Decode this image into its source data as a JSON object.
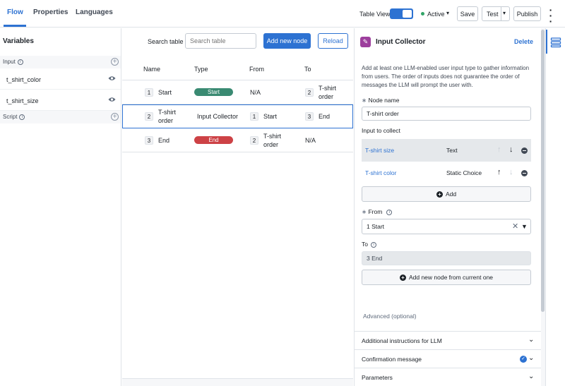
{
  "tabs": [
    {
      "label": "Flow",
      "active": true
    },
    {
      "label": "Properties",
      "active": false
    },
    {
      "label": "Languages",
      "active": false
    }
  ],
  "toolbar": {
    "table_view_label": "Table View",
    "status": "Active",
    "save": "Save",
    "test": "Test",
    "publish": "Publish"
  },
  "variables": {
    "title": "Variables",
    "input_section": "Input",
    "items": [
      {
        "name": "t_shirt_color"
      },
      {
        "name": "t_shirt_size"
      }
    ],
    "script_section": "Script"
  },
  "table": {
    "search_label": "Search table",
    "search_placeholder": "Search table",
    "add_button": "Add new node",
    "reload_button": "Reload",
    "headers": [
      "Name",
      "Type",
      "From",
      "To"
    ],
    "rows": [
      {
        "idx": "1",
        "name": "Start",
        "type": "Start",
        "type_style": "pill",
        "from_idx": "",
        "from": "N/A",
        "to_idx": "2",
        "to": "T-shirt order",
        "selected": false
      },
      {
        "idx": "2",
        "name": "T-shirt order",
        "type": "Input Collector",
        "type_style": "text",
        "from_idx": "1",
        "from": "Start",
        "to_idx": "3",
        "to": "End",
        "selected": true
      },
      {
        "idx": "3",
        "name": "End",
        "type": "End",
        "type_style": "pill",
        "from_idx": "2",
        "from": "T-shirt order",
        "to_idx": "",
        "to": "N/A",
        "selected": false
      }
    ]
  },
  "panel": {
    "title": "Input Collector",
    "delete": "Delete",
    "description": "Add at least one LLM-enabled user input type to gather information from users. The order of inputs does not guarantee the order of messages the LLM will prompt the user with.",
    "node_name_label": "Node name",
    "node_name_value": "T-shirt order",
    "input_label": "Input to collect",
    "inputs": [
      {
        "name": "T-shirt size",
        "type": "Text"
      },
      {
        "name": "T-shirt color",
        "type": "Static Choice"
      }
    ],
    "add_button": "Add",
    "from_label": "From",
    "from_value": "1 Start",
    "to_label": "To",
    "to_value": "3 End",
    "add_node_button": "Add new node from current one",
    "advanced_label": "Advanced (optional)",
    "accordions": [
      {
        "label": "Additional instructions for LLM"
      },
      {
        "label": "Confirmation message"
      },
      {
        "label": "Parameters"
      }
    ]
  },
  "colors": {
    "accent": "#2d72d2",
    "start_pill": "#3a8a72",
    "end_pill": "#cd4246",
    "active_dot": "#32a467",
    "node_icon": "#9d3f9d"
  }
}
